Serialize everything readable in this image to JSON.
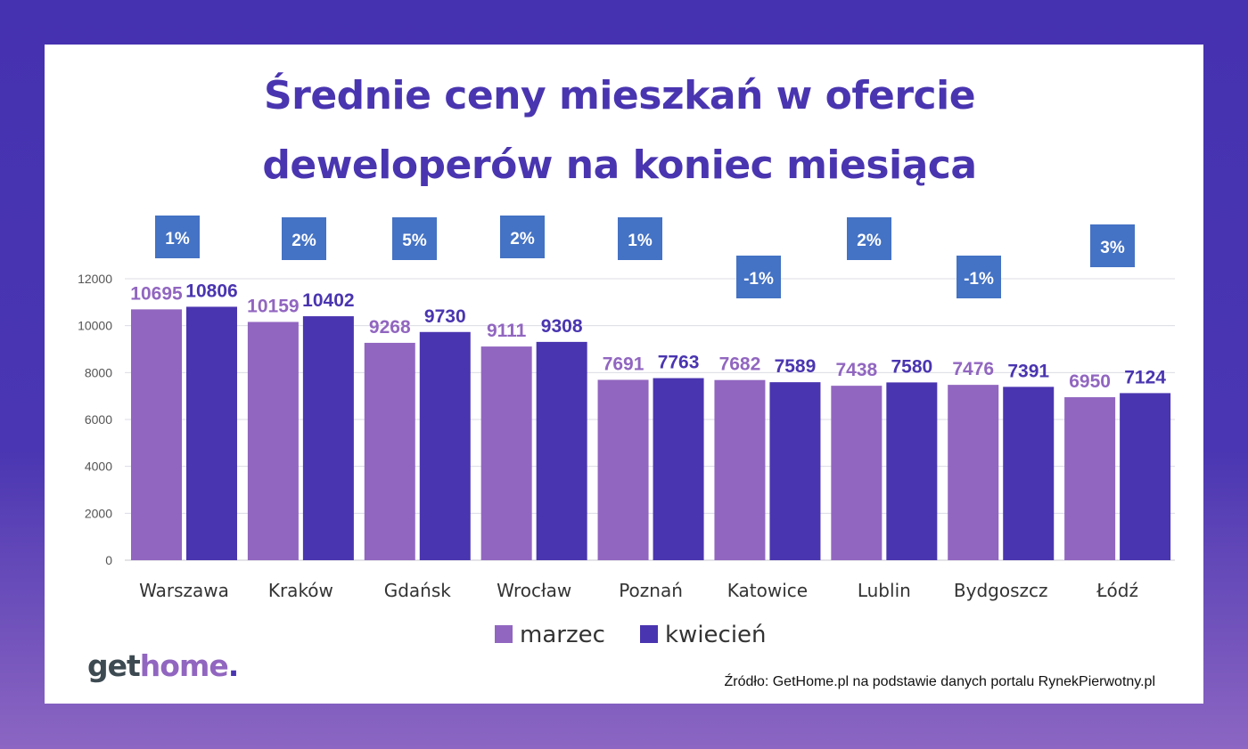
{
  "title_line1": "Średnie ceny mieszkań w ofercie",
  "title_line2": "deweloperów na koniec miesiąca",
  "logo": {
    "part1": "get",
    "part2": "home",
    "part3": ".",
    "colors": [
      "#3d4a52",
      "#9166c0",
      "#4a35b0"
    ]
  },
  "source": "Źródło: GetHome.pl na podstawie danych portalu RynekPierwotny.pl",
  "chart_data": {
    "type": "bar",
    "title": "Średnie ceny mieszkań w ofercie deweloperów na koniec miesiąca",
    "categories": [
      "Warszawa",
      "Kraków",
      "Gdańsk",
      "Wrocław",
      "Poznań",
      "Katowice",
      "Lublin",
      "Bydgoszcz",
      "Łódź"
    ],
    "series": [
      {
        "name": "marzec",
        "color": "#9166c0",
        "values": [
          10695,
          10159,
          9268,
          9111,
          7691,
          7682,
          7438,
          7476,
          6950
        ]
      },
      {
        "name": "kwiecień",
        "color": "#4a35b0",
        "values": [
          10806,
          10402,
          9730,
          9308,
          7763,
          7589,
          7580,
          7391,
          7124
        ]
      }
    ],
    "change_labels": [
      "1%",
      "2%",
      "5%",
      "2%",
      "1%",
      "-1%",
      "2%",
      "-1%",
      "3%"
    ],
    "change_label_color": "#4472c4",
    "ylim": [
      0,
      12000
    ],
    "yticks": [
      0,
      2000,
      4000,
      6000,
      8000,
      10000,
      12000
    ],
    "grid": true,
    "legend": "bottom"
  }
}
